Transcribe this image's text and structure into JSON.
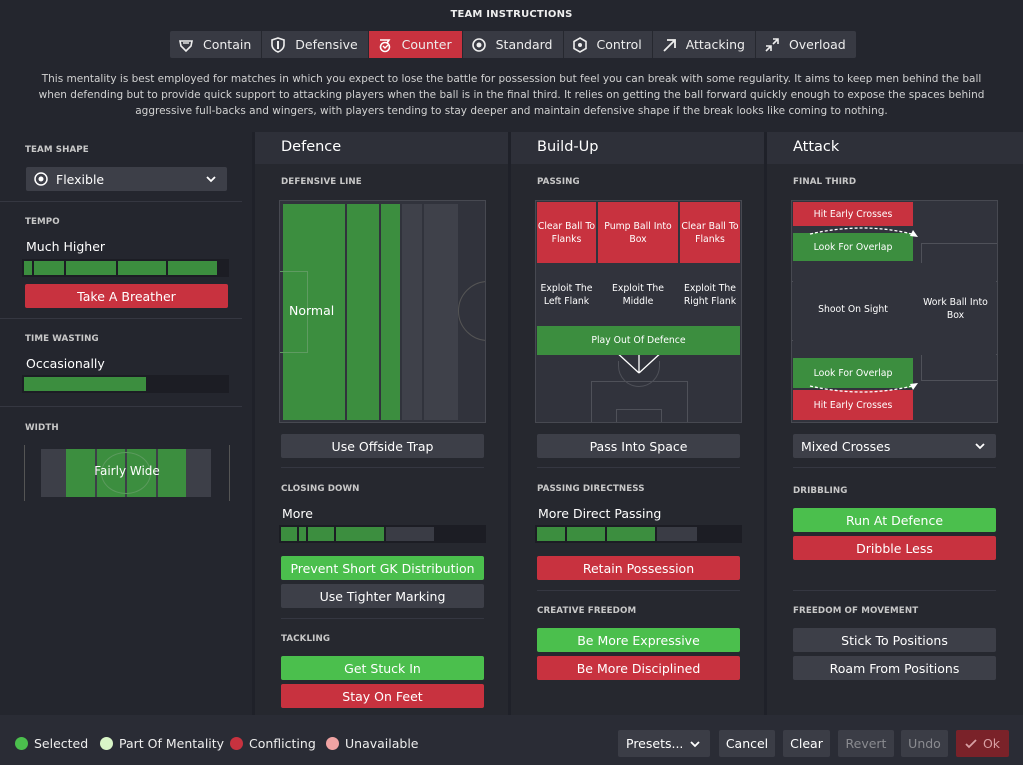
{
  "header": {
    "title": "TEAM INSTRUCTIONS",
    "description": "This mentality is best employed for matches in which you expect to lose the battle for possession but feel you can break with some regularity.  It aims to keep men behind the ball when defending but to provide quick support to attacking players when the ball is in the final third. It relies on getting the ball forward quickly enough to expose the spaces behind aggressive full-backs and wingers, with players tending to stay deeper and maintain defensive shape if the break looks like coming to nothing."
  },
  "mentalities": [
    {
      "label": "Contain",
      "icon": "contain-icon"
    },
    {
      "label": "Defensive",
      "icon": "shield-icon"
    },
    {
      "label": "Counter",
      "icon": "counter-icon",
      "active": true
    },
    {
      "label": "Standard",
      "icon": "standard-icon"
    },
    {
      "label": "Control",
      "icon": "control-icon"
    },
    {
      "label": "Attacking",
      "icon": "attacking-arrow-icon"
    },
    {
      "label": "Overload",
      "icon": "overload-arrows-icon"
    }
  ],
  "sidebar": {
    "team_shape_label": "TEAM SHAPE",
    "team_shape_value": "Flexible",
    "tempo_label": "TEMPO",
    "tempo_value": "Much Higher",
    "tempo_level": 6,
    "take_breather": "Take A Breather",
    "time_wasting_label": "TIME WASTING",
    "time_wasting_value": "Occasionally",
    "time_wasting_level": 0.6,
    "width_label": "WIDTH",
    "width_value": "Fairly Wide",
    "width_level": 4
  },
  "defence": {
    "title": "Defence",
    "defensive_line_label": "DEFENSIVE LINE",
    "defensive_line_value": "Normal",
    "offside_trap": "Use Offside Trap",
    "closing_down_label": "CLOSING DOWN",
    "closing_down_value": "More",
    "closing_down_level": 4,
    "prevent_gk": "Prevent Short GK Distribution",
    "tighter_marking": "Use Tighter Marking",
    "tackling_label": "TACKLING",
    "get_stuck_in": "Get Stuck In",
    "stay_on_feet": "Stay On Feet"
  },
  "buildup": {
    "title": "Build-Up",
    "passing_label": "PASSING",
    "clear_left": "Clear Ball To Flanks",
    "pump_box": "Pump Ball Into Box",
    "clear_right": "Clear Ball To Flanks",
    "exploit_left": "Exploit The Left Flank",
    "exploit_middle": "Exploit The Middle",
    "exploit_right": "Exploit The Right Flank",
    "play_out": "Play Out Of Defence",
    "pass_into_space": "Pass Into Space",
    "passing_directness_label": "PASSING DIRECTNESS",
    "passing_directness_value": "More Direct Passing",
    "passing_directness_level": 4,
    "retain_possession": "Retain Possession",
    "creative_freedom_label": "CREATIVE FREEDOM",
    "be_more_expressive": "Be More Expressive",
    "be_more_disciplined": "Be More Disciplined"
  },
  "attack": {
    "title": "Attack",
    "final_third_label": "FINAL THIRD",
    "hit_early_top": "Hit Early Crosses",
    "overlap_top": "Look For Overlap",
    "shoot_on_sight": "Shoot On Sight",
    "work_ball": "Work Ball Into Box",
    "overlap_bottom": "Look For Overlap",
    "hit_early_bottom": "Hit Early Crosses",
    "crossing_value": "Mixed Crosses",
    "dribbling_label": "DRIBBLING",
    "run_at_defence": "Run At Defence",
    "dribble_less": "Dribble Less",
    "freedom_label": "FREEDOM OF MOVEMENT",
    "stick_positions": "Stick To Positions",
    "roam_positions": "Roam From Positions"
  },
  "legend": [
    {
      "label": "Selected",
      "color": "#4bbf4d"
    },
    {
      "label": "Part Of Mentality",
      "color": "#d9f5c7"
    },
    {
      "label": "Conflicting",
      "color": "#c8323f"
    },
    {
      "label": "Unavailable",
      "color": "#f0a3a3"
    }
  ],
  "footer": {
    "presets": "Presets...",
    "cancel": "Cancel",
    "clear": "Clear",
    "revert": "Revert",
    "undo": "Undo",
    "ok": "Ok"
  }
}
